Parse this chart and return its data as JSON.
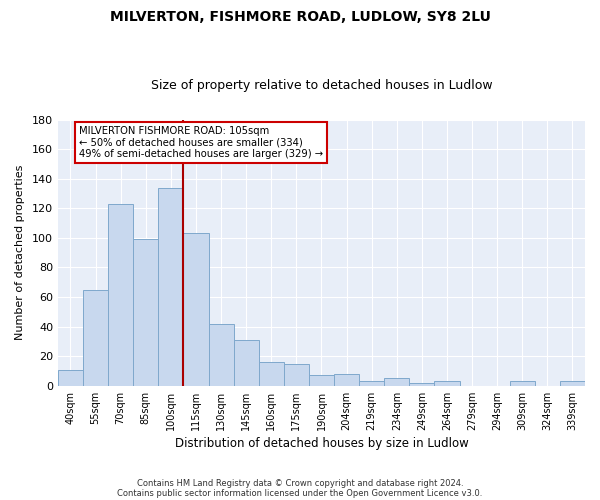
{
  "title": "MILVERTON, FISHMORE ROAD, LUDLOW, SY8 2LU",
  "subtitle": "Size of property relative to detached houses in Ludlow",
  "xlabel": "Distribution of detached houses by size in Ludlow",
  "ylabel": "Number of detached properties",
  "bar_color": "#c8d8ee",
  "bar_edge_color": "#7fa8cc",
  "categories": [
    "40sqm",
    "55sqm",
    "70sqm",
    "85sqm",
    "100sqm",
    "115sqm",
    "130sqm",
    "145sqm",
    "160sqm",
    "175sqm",
    "190sqm",
    "204sqm",
    "219sqm",
    "234sqm",
    "249sqm",
    "264sqm",
    "279sqm",
    "294sqm",
    "309sqm",
    "324sqm",
    "339sqm"
  ],
  "values": [
    11,
    65,
    123,
    99,
    134,
    103,
    42,
    31,
    16,
    15,
    7,
    8,
    3,
    5,
    2,
    3,
    0,
    0,
    3,
    0,
    3
  ],
  "ylim": [
    0,
    180
  ],
  "yticks": [
    0,
    20,
    40,
    60,
    80,
    100,
    120,
    140,
    160,
    180
  ],
  "marker_label": "MILVERTON FISHMORE ROAD: 105sqm",
  "annotation_line1": "← 50% of detached houses are smaller (334)",
  "annotation_line2": "49% of semi-detached houses are larger (329) →",
  "footnote1": "Contains HM Land Registry data © Crown copyright and database right 2024.",
  "footnote2": "Contains public sector information licensed under the Open Government Licence v3.0.",
  "background_color": "#ffffff",
  "plot_bg_color": "#e8eef8",
  "grid_color": "#ffffff",
  "annotation_box_color": "#ffffff",
  "annotation_box_edge": "#cc0000",
  "vline_color": "#aa0000",
  "title_fontsize": 10,
  "subtitle_fontsize": 9
}
